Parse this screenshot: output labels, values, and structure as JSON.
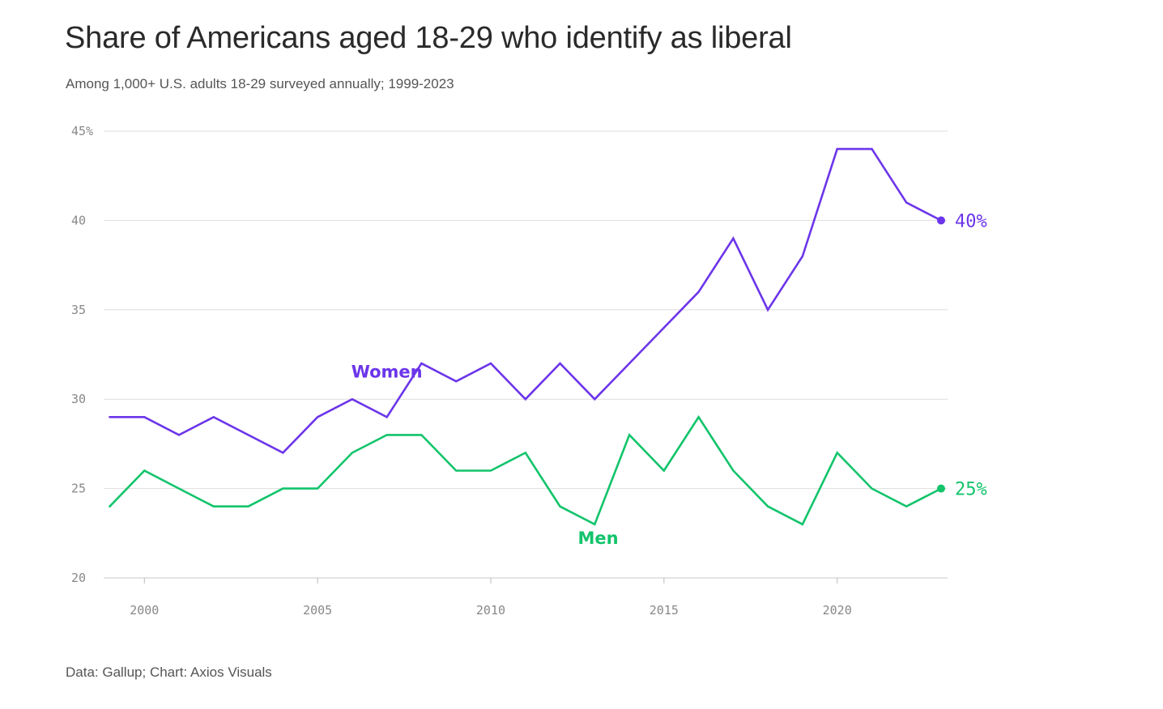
{
  "chart_data": {
    "type": "line",
    "title": "Share of Americans aged 18-29 who identify as liberal",
    "subtitle": "Among 1,000+ U.S. adults 18-29 surveyed annually; 1999-2023",
    "source": "Data: Gallup; Chart: Axios Visuals",
    "xlabel": "",
    "ylabel": "",
    "xlim": [
      1999,
      2023
    ],
    "ylim": [
      20,
      45
    ],
    "x_ticks": [
      2000,
      2005,
      2010,
      2015,
      2020
    ],
    "x_tick_labels": [
      "2000",
      "2005",
      "2010",
      "2015",
      "2020"
    ],
    "y_ticks": [
      20,
      25,
      30,
      35,
      40,
      45
    ],
    "y_tick_labels": [
      "20",
      "25",
      "30",
      "35",
      "40",
      "45%"
    ],
    "grid": "horizontal",
    "x": [
      1999,
      2000,
      2001,
      2002,
      2003,
      2004,
      2005,
      2006,
      2007,
      2008,
      2009,
      2010,
      2011,
      2012,
      2013,
      2014,
      2015,
      2016,
      2017,
      2018,
      2019,
      2020,
      2021,
      2022,
      2023
    ],
    "series": [
      {
        "name": "Women",
        "color": "#6c35ea",
        "values": [
          29,
          29,
          28,
          29,
          28,
          27,
          29,
          30,
          29,
          32,
          31,
          32,
          30,
          32,
          30,
          32,
          34,
          36,
          39,
          35,
          38,
          44,
          44,
          41,
          40
        ],
        "end_label": "40%",
        "label_x": 2007,
        "label_y": 31.2
      },
      {
        "name": "Men",
        "color": "#12c46b",
        "values": [
          24,
          26,
          25,
          24,
          24,
          25,
          25,
          27,
          28,
          28,
          26,
          26,
          27,
          24,
          23,
          28,
          26,
          29,
          26,
          24,
          23,
          27,
          25,
          24,
          25
        ],
        "end_label": "25%",
        "label_x": 2013.1,
        "label_y": 21.9
      }
    ]
  }
}
